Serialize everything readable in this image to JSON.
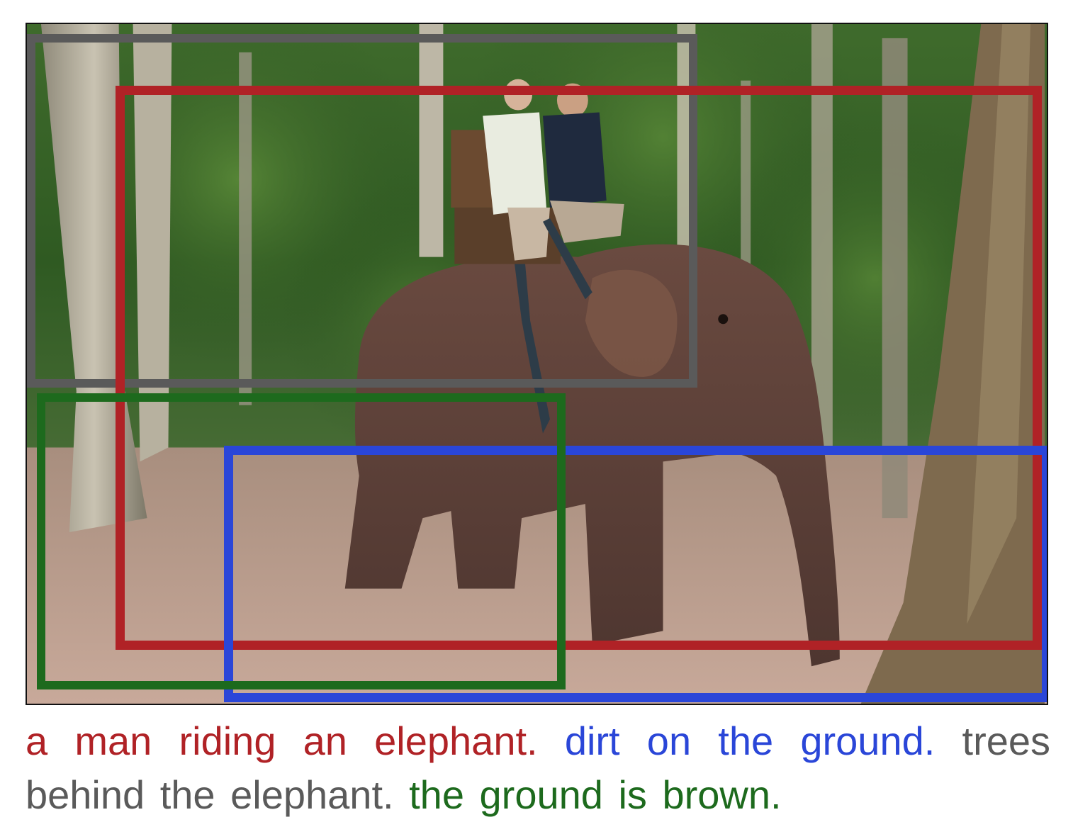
{
  "scene": {
    "subject": "elephant-with-riders",
    "icon": "photo-icon"
  },
  "regions": [
    {
      "id": "gray",
      "color": "#5a5a5a",
      "phrase": "trees behind the elephant."
    },
    {
      "id": "red",
      "color": "#b02226",
      "phrase": "a man riding an elephant."
    },
    {
      "id": "blue",
      "color": "#2a46d8",
      "phrase": "dirt on the ground."
    },
    {
      "id": "green",
      "color": "#1d6a1d",
      "phrase": "the ground is brown."
    }
  ],
  "caption": {
    "red_text": "a man riding an elephant.",
    "blue_text": "dirt on the ground.",
    "gray_text": "trees behind the elephant.",
    "green_text": "the ground is brown."
  }
}
